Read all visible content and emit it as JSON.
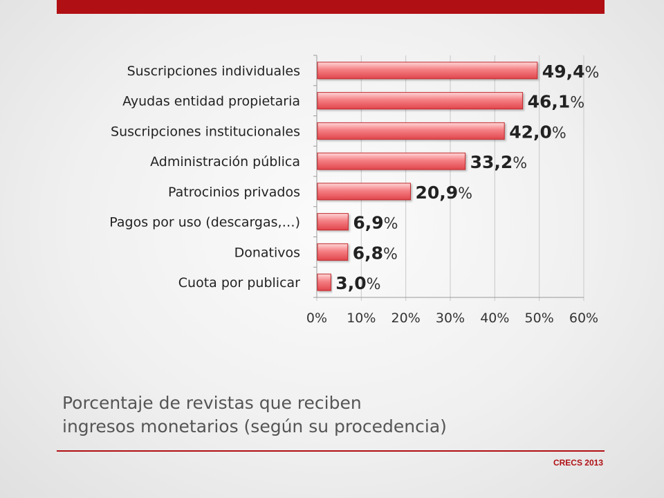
{
  "slide": {
    "title_line1": "Porcentaje de revistas que reciben",
    "title_line2": "ingresos monetarios (según su procedencia)",
    "footer": "CRECS 2013",
    "accent_color": "#b00f14"
  },
  "chart_data": {
    "type": "bar",
    "orientation": "horizontal",
    "categories": [
      "Suscripciones individuales",
      "Ayudas entidad propietaria",
      "Suscripciones institucionales",
      "Administración pública",
      "Patrocinios privados",
      "Pagos por uso (descargas,…)",
      "Donativos",
      "Cuota por publicar"
    ],
    "values": [
      49.4,
      46.1,
      42.0,
      33.2,
      20.9,
      6.9,
      6.8,
      3.0
    ],
    "data_labels": [
      "49,4%",
      "46,1%",
      "42,0%",
      "33,2%",
      "20,9%",
      "6,9%",
      "6,8%",
      "3,0%"
    ],
    "xlim": [
      0,
      60
    ],
    "x_ticks": [
      0,
      10,
      20,
      30,
      40,
      50,
      60
    ],
    "x_tick_labels": [
      "0%",
      "10%",
      "20%",
      "30%",
      "40%",
      "50%",
      "60%"
    ],
    "grid": "vertical",
    "bar_color": "#f07377",
    "bar_edge_color": "#c0282c"
  }
}
